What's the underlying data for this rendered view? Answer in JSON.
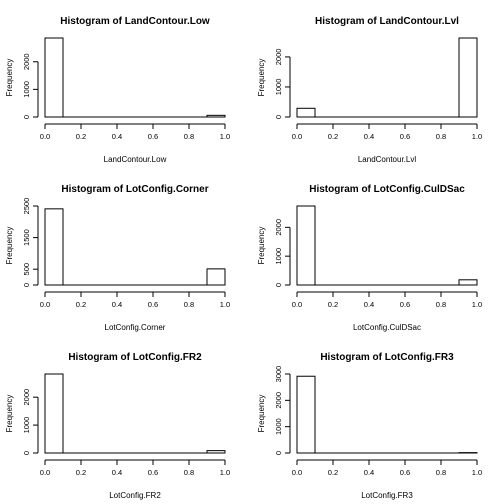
{
  "chart_data": [
    {
      "type": "bar",
      "title": "Histogram of  LandContour.Low",
      "xlabel": "LandContour.Low",
      "ylabel": "Frequency",
      "bins": [
        [
          0.0,
          0.1
        ],
        [
          0.1,
          0.2
        ],
        [
          0.2,
          0.3
        ],
        [
          0.3,
          0.4
        ],
        [
          0.4,
          0.5
        ],
        [
          0.5,
          0.6
        ],
        [
          0.6,
          0.7
        ],
        [
          0.7,
          0.8
        ],
        [
          0.8,
          0.9
        ],
        [
          0.9,
          1.0
        ]
      ],
      "values": [
        2860,
        0,
        0,
        0,
        0,
        0,
        0,
        0,
        0,
        60
      ],
      "x_ticks": [
        "0.0",
        "0.2",
        "0.4",
        "0.6",
        "0.8",
        "1.0"
      ],
      "y_ticks": [
        0,
        1000,
        2000
      ],
      "ylim": [
        0,
        2860
      ],
      "xlim": [
        0,
        1
      ]
    },
    {
      "type": "bar",
      "title": "Histogram of  LandContour.Lvl",
      "xlabel": "LandContour.Lvl",
      "ylabel": "Frequency",
      "bins": [
        [
          0.0,
          0.1
        ],
        [
          0.1,
          0.2
        ],
        [
          0.2,
          0.3
        ],
        [
          0.3,
          0.4
        ],
        [
          0.4,
          0.5
        ],
        [
          0.5,
          0.6
        ],
        [
          0.6,
          0.7
        ],
        [
          0.7,
          0.8
        ],
        [
          0.8,
          0.9
        ],
        [
          0.9,
          1.0
        ]
      ],
      "values": [
        290,
        0,
        0,
        0,
        0,
        0,
        0,
        0,
        0,
        2630
      ],
      "x_ticks": [
        "0.0",
        "0.2",
        "0.4",
        "0.6",
        "0.8",
        "1.0"
      ],
      "y_ticks": [
        0,
        1000,
        2000
      ],
      "ylim": [
        0,
        2630
      ],
      "xlim": [
        0,
        1
      ]
    },
    {
      "type": "bar",
      "title": "Histogram of  LotConfig.Corner",
      "xlabel": "LotConfig.Corner",
      "ylabel": "Frequency",
      "bins": [
        [
          0.0,
          0.1
        ],
        [
          0.1,
          0.2
        ],
        [
          0.2,
          0.3
        ],
        [
          0.3,
          0.4
        ],
        [
          0.4,
          0.5
        ],
        [
          0.5,
          0.6
        ],
        [
          0.6,
          0.7
        ],
        [
          0.7,
          0.8
        ],
        [
          0.8,
          0.9
        ],
        [
          0.9,
          1.0
        ]
      ],
      "values": [
        2410,
        0,
        0,
        0,
        0,
        0,
        0,
        0,
        0,
        510
      ],
      "x_ticks": [
        "0.0",
        "0.2",
        "0.4",
        "0.6",
        "0.8",
        "1.0"
      ],
      "y_ticks": [
        0,
        500,
        1500,
        2500
      ],
      "ylim": [
        0,
        2500
      ],
      "xlim": [
        0,
        1
      ]
    },
    {
      "type": "bar",
      "title": "Histogram of  LotConfig.CulDSac",
      "xlabel": "LotConfig.CulDSac",
      "ylabel": "Frequency",
      "bins": [
        [
          0.0,
          0.1
        ],
        [
          0.1,
          0.2
        ],
        [
          0.2,
          0.3
        ],
        [
          0.3,
          0.4
        ],
        [
          0.4,
          0.5
        ],
        [
          0.5,
          0.6
        ],
        [
          0.6,
          0.7
        ],
        [
          0.7,
          0.8
        ],
        [
          0.8,
          0.9
        ],
        [
          0.9,
          1.0
        ]
      ],
      "values": [
        2740,
        0,
        0,
        0,
        0,
        0,
        0,
        0,
        0,
        180
      ],
      "x_ticks": [
        "0.0",
        "0.2",
        "0.4",
        "0.6",
        "0.8",
        "1.0"
      ],
      "y_ticks": [
        0,
        1000,
        2000
      ],
      "ylim": [
        0,
        2740
      ],
      "xlim": [
        0,
        1
      ]
    },
    {
      "type": "bar",
      "title": "Histogram of  LotConfig.FR2",
      "xlabel": "LotConfig.FR2",
      "ylabel": "Frequency",
      "bins": [
        [
          0.0,
          0.1
        ],
        [
          0.1,
          0.2
        ],
        [
          0.2,
          0.3
        ],
        [
          0.3,
          0.4
        ],
        [
          0.4,
          0.5
        ],
        [
          0.5,
          0.6
        ],
        [
          0.6,
          0.7
        ],
        [
          0.7,
          0.8
        ],
        [
          0.8,
          0.9
        ],
        [
          0.9,
          1.0
        ]
      ],
      "values": [
        2830,
        0,
        0,
        0,
        0,
        0,
        0,
        0,
        0,
        85
      ],
      "x_ticks": [
        "0.0",
        "0.2",
        "0.4",
        "0.6",
        "0.8",
        "1.0"
      ],
      "y_ticks": [
        0,
        1000,
        2000
      ],
      "ylim": [
        0,
        2830
      ],
      "xlim": [
        0,
        1
      ]
    },
    {
      "type": "bar",
      "title": "Histogram of  LotConfig.FR3",
      "xlabel": "LotConfig.FR3",
      "ylabel": "Frequency",
      "bins": [
        [
          0.0,
          0.1
        ],
        [
          0.1,
          0.2
        ],
        [
          0.2,
          0.3
        ],
        [
          0.3,
          0.4
        ],
        [
          0.4,
          0.5
        ],
        [
          0.5,
          0.6
        ],
        [
          0.6,
          0.7
        ],
        [
          0.7,
          0.8
        ],
        [
          0.8,
          0.9
        ],
        [
          0.9,
          1.0
        ]
      ],
      "values": [
        2915,
        0,
        0,
        0,
        0,
        0,
        0,
        0,
        0,
        14
      ],
      "x_ticks": [
        "0.0",
        "0.2",
        "0.4",
        "0.6",
        "0.8",
        "1.0"
      ],
      "y_ticks": [
        0,
        1000,
        2000,
        3000
      ],
      "ylim": [
        0,
        3000
      ],
      "xlim": [
        0,
        1
      ]
    }
  ]
}
